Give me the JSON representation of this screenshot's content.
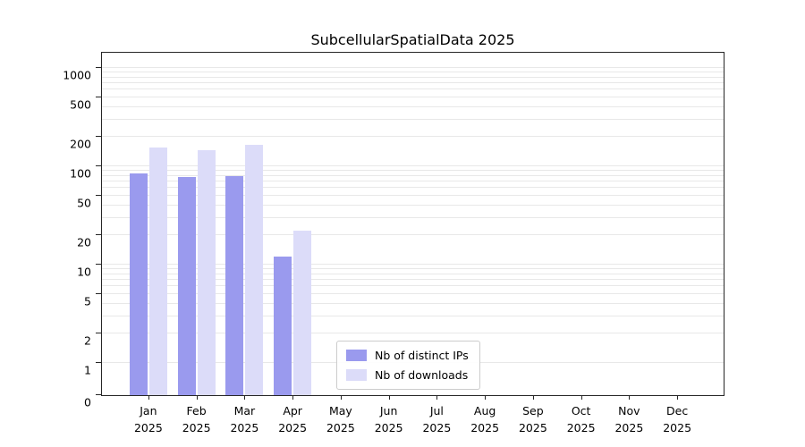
{
  "chart_data": {
    "type": "bar",
    "title": "SubcellularSpatialData 2025",
    "xlabel": "",
    "ylabel": "",
    "yscale": "symlog",
    "grid": true,
    "legend_position": "lower center",
    "ylim": [
      0,
      1400
    ],
    "yticks": [
      0,
      1,
      2,
      5,
      10,
      20,
      50,
      100,
      200,
      500,
      1000
    ],
    "categories": [
      {
        "month": "Jan",
        "year": "2025"
      },
      {
        "month": "Feb",
        "year": "2025"
      },
      {
        "month": "Mar",
        "year": "2025"
      },
      {
        "month": "Apr",
        "year": "2025"
      },
      {
        "month": "May",
        "year": "2025"
      },
      {
        "month": "Jun",
        "year": "2025"
      },
      {
        "month": "Jul",
        "year": "2025"
      },
      {
        "month": "Aug",
        "year": "2025"
      },
      {
        "month": "Sep",
        "year": "2025"
      },
      {
        "month": "Oct",
        "year": "2025"
      },
      {
        "month": "Nov",
        "year": "2025"
      },
      {
        "month": "Dec",
        "year": "2025"
      }
    ],
    "series": [
      {
        "name": "Nb of distinct IPs",
        "color": "#9a9aee",
        "values": [
          85,
          78,
          79,
          12,
          0,
          0,
          0,
          0,
          0,
          0,
          0,
          0
        ]
      },
      {
        "name": "Nb of downloads",
        "color": "#dcdcf9",
        "values": [
          155,
          145,
          165,
          22,
          0,
          0,
          0,
          0,
          0,
          0,
          0,
          0
        ]
      }
    ],
    "colors": {
      "gridline": "#e8e8e8",
      "axis": "#262626",
      "background": "#ffffff"
    }
  }
}
